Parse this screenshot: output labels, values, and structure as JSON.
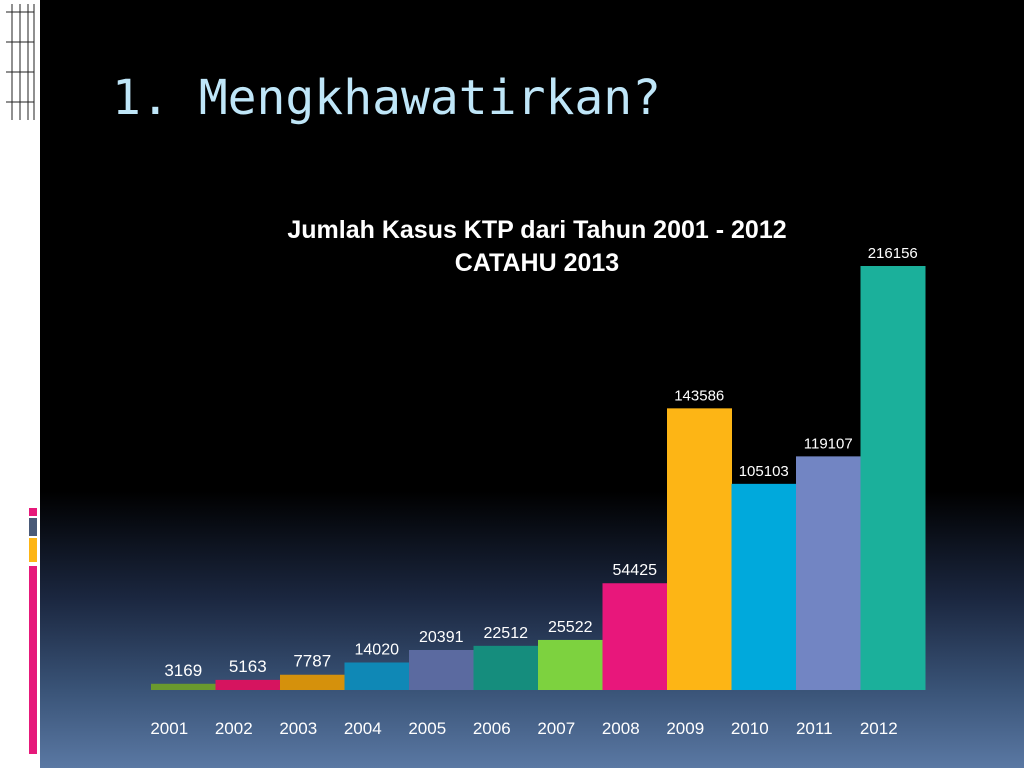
{
  "slide": {
    "title": "1. Mengkhawatirkan?"
  },
  "colors": {
    "title": "#bfe6f8",
    "stripes": [
      "#e6197a",
      "#4a5a78",
      "#fdb515",
      "#e6197a"
    ]
  },
  "chart_data": {
    "type": "bar",
    "title": "Jumlah Kasus KTP dari Tahun 2001 - 2012",
    "subtitle": "CATAHU 2013",
    "xlabel": "",
    "ylabel": "",
    "ylim": [
      0,
      216156
    ],
    "grid": false,
    "legend": "none",
    "categories": [
      "2001",
      "2002",
      "2003",
      "2004",
      "2005",
      "2006",
      "2007",
      "2008",
      "2009",
      "2010",
      "2011",
      "2012"
    ],
    "values": [
      3169,
      5163,
      7787,
      14020,
      20391,
      22512,
      25522,
      54425,
      143586,
      105103,
      119107,
      216156
    ],
    "bar_colors": [
      "#6a9a2e",
      "#d6145f",
      "#d5910c",
      "#0f88b6",
      "#5b6aa0",
      "#158d7d",
      "#7dd23f",
      "#e8177b",
      "#fdb515",
      "#00a9dc",
      "#7285c3",
      "#1bb09b"
    ]
  }
}
